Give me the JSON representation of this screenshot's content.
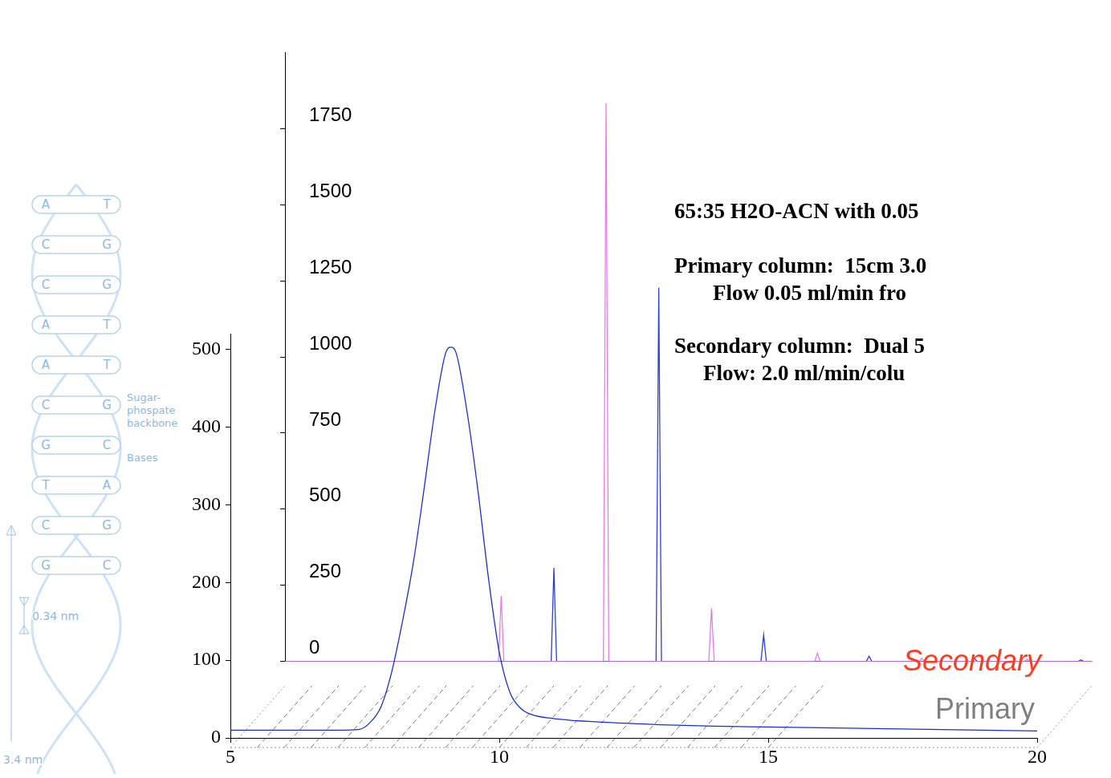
{
  "chart_data": [
    {
      "type": "line",
      "annotations": [
        "Primary"
      ],
      "xlim": [
        5,
        20
      ],
      "xticks": [
        5,
        10,
        15,
        20
      ],
      "ylim": [
        0,
        520
      ],
      "yticks": [
        0,
        100,
        200,
        300,
        400,
        500
      ],
      "grid": false,
      "tick_labels": true,
      "series": [
        {
          "color": "#1a2fd0",
          "x": [
            5,
            6,
            7,
            7.4,
            7.6,
            7.8,
            8.0,
            8.2,
            8.4,
            8.6,
            8.8,
            9.0,
            9.1,
            9.2,
            9.4,
            9.6,
            9.8,
            10.0,
            10.2,
            10.4,
            10.6,
            11,
            12,
            13,
            14,
            15,
            16,
            17,
            18,
            19,
            20
          ],
          "values": [
            10,
            10,
            10,
            11,
            20,
            40,
            85,
            150,
            225,
            320,
            420,
            495,
            503,
            495,
            420,
            320,
            205,
            110,
            58,
            38,
            30,
            25,
            20,
            17,
            15,
            14,
            13,
            12,
            11,
            10,
            9
          ]
        }
      ]
    },
    {
      "type": "line",
      "annotations": [
        "Secondary"
      ],
      "xlim": [
        5,
        20
      ],
      "ylim": [
        0,
        2000
      ],
      "yticks": [
        0,
        250,
        500,
        750,
        1000,
        1250,
        1500,
        1750
      ],
      "grid": false,
      "tick_labels": "y",
      "series": [
        {
          "color": "#ee77ee",
          "x": [
            5,
            8.97,
            9.02,
            9.07,
            10.92,
            10.97,
            11.02,
            12.88,
            12.93,
            12.98,
            14.85,
            14.9,
            14.95,
            16.79,
            16.84,
            16.89,
            18.75,
            18.8,
            18.85,
            20
          ],
          "values": [
            0,
            0,
            215,
            0,
            0,
            1833,
            0,
            0,
            174,
            0,
            0,
            27,
            0,
            0,
            10,
            0,
            0,
            7,
            0,
            0
          ]
        },
        {
          "color": "#2b3fd8",
          "x": [
            5,
            9.95,
            10.0,
            10.05,
            11.9,
            11.95,
            12.0,
            13.85,
            13.9,
            13.95,
            15.81,
            15.86,
            15.91,
            17.77,
            17.82,
            17.87,
            19.75,
            19.8,
            19.85,
            20
          ],
          "values": [
            0,
            0,
            307,
            0,
            0,
            1227,
            0,
            0,
            87,
            0,
            0,
            17,
            0,
            0,
            10,
            0,
            0,
            5,
            0,
            0
          ]
        }
      ]
    }
  ],
  "annotations": [
    "65:35 H2O-ACN with 0.05",
    "Primary column:  15cm 3.0",
    "Flow 0.05 ml/min fro",
    "Secondary column:  Dual 5",
    "Flow: 2.0 ml/min/colu"
  ],
  "background": {
    "base_pairs": [
      [
        "A",
        "T"
      ],
      [
        "C",
        "G"
      ],
      [
        "C",
        "G"
      ],
      [
        "A",
        "T"
      ],
      [
        "A",
        "T"
      ],
      [
        "C",
        "G"
      ],
      [
        "G",
        "C"
      ],
      [
        "T",
        "A"
      ],
      [
        "C",
        "G"
      ],
      [
        "G",
        "C"
      ]
    ],
    "labels": [
      "Sugar-phospate backbone",
      "Bases",
      "0.34 nm",
      "3.4 nm"
    ]
  }
}
